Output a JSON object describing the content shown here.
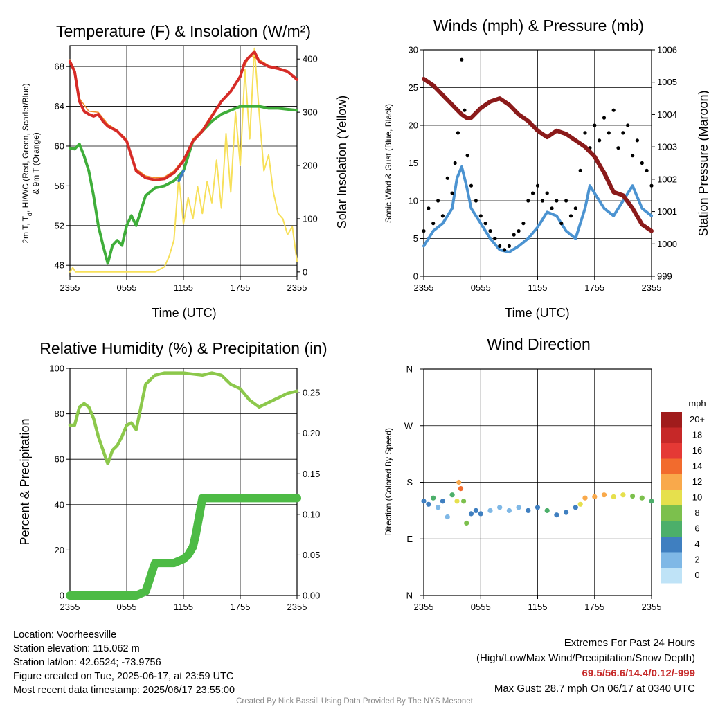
{
  "panels": {
    "temp": {
      "title": "Temperature (F) & Insolation (W/m²)",
      "xlabel": "Time (UTC)",
      "ylabel_left_lines": [
        "2m T, T",
        "d",
        ", HI/WC (Red, Green, Scarlet/Blue)",
        "& 9m T (Orange)"
      ],
      "ylabel_right": "Solar Insolation (Yellow)"
    },
    "wind": {
      "title": "Winds (mph) & Pressure (mb)",
      "xlabel": "Time (UTC)",
      "ylabel_left": "Sonic Wind & Gust (Blue, Black)",
      "ylabel_right": "Station Pressure (Maroon)"
    },
    "rh": {
      "title": "Relative Humidity (%) & Precipitation (in)",
      "ylabel_left": "Percent & Precipitation"
    },
    "dir": {
      "title": "Wind Direction",
      "ylabel_left": "Direction (Colored By Speed)",
      "colorbar_title": "mph",
      "colorbar_labels": [
        "20+",
        "18",
        "16",
        "14",
        "12",
        "10",
        "8",
        "6",
        "4",
        "2",
        "0"
      ],
      "colorbar_colors": [
        "#a01c1c",
        "#c62828",
        "#e53935",
        "#f26b2d",
        "#f9a94b",
        "#e6e04d",
        "#7cc04d",
        "#4caf6a",
        "#3f7fc0",
        "#7fb8e6",
        "#bfe3f7"
      ]
    }
  },
  "info": {
    "location": "Location: Voorheesville",
    "elevation": "Station elevation: 115.062 m",
    "latlon": "Station lat/lon: 42.6524; -73.9756",
    "created": "Figure created on Tue, 2025-06-17, at 23:59 UTC",
    "recent": "Most recent data timestamp: 2025/06/17 23:55:00",
    "extremes_title": "Extremes For Past 24 Hours",
    "extremes_sub": "(High/Low/Max Wind/Precipitation/Snow Depth)",
    "extremes_values": "69.5/56.6/14.4/0.12/-999",
    "max_gust": "Max Gust: 28.7 mph On 06/17 at 0340 UTC"
  },
  "credit": "Created By Nick Bassill Using Data Provided By The NYS Mesonet",
  "colors": {
    "temp": "#d62b27",
    "temp9m": "#f28c28",
    "dewpoint": "#3fae3a",
    "hiwc": "#3a7fc0",
    "solar": "#f7e05a",
    "wind": "#4b93d1",
    "gust": "#000000",
    "pressure": "#8b1a1a",
    "rh": "#8cc84b",
    "precip": "#4dbb45"
  },
  "chart_data": [
    {
      "type": "line",
      "title": "Temperature (F) & Insolation (W/m²)",
      "xlabel": "Time (UTC)",
      "x_ticks": [
        "2355",
        "0555",
        "1155",
        "1755",
        "2355"
      ],
      "x_hours": [
        0,
        6,
        12,
        18,
        24
      ],
      "xlim": [
        0,
        24
      ],
      "y_left_ticks": [
        48,
        52,
        56,
        60,
        64,
        68
      ],
      "ylim_left": [
        46.9,
        70.1
      ],
      "y_right_ticks": [
        0,
        100,
        200,
        300,
        400
      ],
      "ylim_right": [
        -8,
        425
      ],
      "series": [
        {
          "name": "2m T (Red)",
          "axis": "left",
          "x": [
            0,
            0.5,
            1,
            1.5,
            2,
            2.5,
            3,
            3.5,
            4,
            5,
            6,
            7,
            8,
            9,
            10,
            11,
            12,
            13,
            14,
            15,
            16,
            17,
            18,
            18.5,
            19,
            19.5,
            20,
            21,
            22,
            23,
            24
          ],
          "y": [
            68.5,
            67.5,
            64.5,
            63.5,
            63.2,
            63,
            63.2,
            62.5,
            62,
            61.5,
            60.5,
            57.5,
            56.8,
            56.6,
            56.7,
            57.3,
            58.5,
            60.5,
            61.5,
            63,
            64.5,
            65.5,
            67,
            68.5,
            69,
            69.5,
            68.5,
            68,
            67.8,
            67.5,
            66.7
          ]
        },
        {
          "name": "9m T (Orange)",
          "axis": "left",
          "x": [
            0,
            0.5,
            1,
            2,
            3,
            4,
            5,
            6,
            7,
            8,
            9,
            10,
            11,
            12,
            13,
            14,
            15,
            16,
            17,
            18,
            19,
            20,
            21,
            22,
            23,
            24
          ],
          "y": [
            68.7,
            67.7,
            64.8,
            63.5,
            63.4,
            62.2,
            61.6,
            60.7,
            57.7,
            57,
            56.8,
            56.9,
            57.5,
            58.7,
            60.7,
            61.7,
            63.2,
            64.6,
            65.6,
            67.1,
            69.1,
            68.7,
            68.1,
            67.9,
            67.6,
            66.8
          ]
        },
        {
          "name": "Td (Green)",
          "axis": "left",
          "x": [
            0,
            0.5,
            1,
            1.5,
            2,
            2.5,
            3,
            3.5,
            4,
            4.5,
            5,
            5.5,
            6,
            6.5,
            7,
            8,
            9,
            10,
            11,
            12,
            13,
            14,
            15,
            16,
            17,
            18,
            19,
            20,
            21,
            22,
            23,
            24
          ],
          "y": [
            59.8,
            59.7,
            60.2,
            59,
            57.5,
            55,
            52,
            50,
            48.2,
            50,
            50.5,
            50,
            52,
            53,
            52,
            55,
            55.8,
            56,
            56.5,
            57.5,
            60.5,
            61.5,
            62.5,
            63.2,
            63.6,
            64,
            64,
            64,
            63.8,
            63.8,
            63.7,
            63.6
          ]
        },
        {
          "name": "HI/WC (Blue)",
          "axis": "left",
          "x": [
            11.5,
            12
          ],
          "y": [
            56.5,
            57.5
          ]
        },
        {
          "name": "Solar Insolation (Yellow)",
          "axis": "right",
          "x": [
            0,
            0.3,
            0.6,
            1,
            2,
            4,
            6,
            8,
            9,
            10,
            10.5,
            11,
            11.5,
            12,
            12.5,
            13,
            13.5,
            14,
            14.5,
            15,
            15.5,
            16,
            16.5,
            17,
            17.5,
            18,
            18.5,
            19,
            19.5,
            20,
            20.5,
            21,
            21.5,
            22,
            22.5,
            23,
            23.5,
            24
          ],
          "y": [
            0,
            8,
            0,
            0,
            0,
            0,
            0,
            0,
            0,
            10,
            30,
            60,
            180,
            90,
            140,
            100,
            160,
            110,
            170,
            130,
            210,
            120,
            260,
            150,
            300,
            200,
            380,
            250,
            420,
            300,
            190,
            220,
            150,
            110,
            100,
            70,
            85,
            20
          ]
        }
      ]
    },
    {
      "type": "line",
      "title": "Winds (mph) & Pressure (mb)",
      "xlabel": "Time (UTC)",
      "ylabel": "Sonic Wind & Gust (Blue, Black)",
      "x_ticks": [
        "2355",
        "0555",
        "1155",
        "1755",
        "2355"
      ],
      "xlim": [
        0,
        24
      ],
      "y_left_ticks": [
        0,
        5,
        10,
        15,
        20,
        25,
        30
      ],
      "ylim_left": [
        0,
        30
      ],
      "y_right_ticks": [
        999,
        1000,
        1001,
        1002,
        1003,
        1004,
        1005,
        1006
      ],
      "ylim_right": [
        999,
        1006
      ],
      "series": [
        {
          "name": "Sonic Wind (Blue)",
          "axis": "left",
          "x": [
            0,
            1,
            2,
            3,
            3.5,
            4,
            4.5,
            5,
            6,
            7,
            8,
            9,
            10,
            11,
            12,
            13,
            14,
            15,
            16,
            17,
            17.5,
            18,
            19,
            20,
            21,
            22,
            23,
            24
          ],
          "y": [
            4,
            6,
            7,
            9,
            13,
            14.5,
            12,
            9,
            7,
            5,
            3.5,
            3.2,
            4,
            5,
            6.5,
            8.5,
            8,
            6,
            5,
            9,
            12,
            11,
            9,
            8,
            10,
            12,
            9,
            8
          ]
        },
        {
          "name": "Gust (Black)",
          "axis": "left",
          "style": "points",
          "x": [
            0,
            0.5,
            1,
            1.5,
            2,
            2.5,
            3,
            3.3,
            3.6,
            4,
            4.3,
            4.6,
            5,
            5.5,
            6,
            6.5,
            7,
            7.5,
            8,
            8.5,
            9,
            9.5,
            10,
            10.5,
            11,
            11.5,
            12,
            12.5,
            13,
            13.5,
            14,
            14.5,
            15,
            15.5,
            16,
            16.5,
            17,
            17.5,
            18,
            18.5,
            19,
            19.5,
            20,
            20.5,
            21,
            21.5,
            22,
            22.5,
            23,
            23.5,
            24
          ],
          "y": [
            6,
            9,
            7,
            10,
            8,
            13,
            11,
            15,
            19,
            28.7,
            22,
            16,
            12,
            10,
            8,
            7,
            6,
            5,
            4,
            3.5,
            4,
            5.5,
            6,
            7,
            10,
            11,
            12,
            10,
            11,
            9,
            10,
            7,
            10,
            8,
            9,
            14,
            19,
            17,
            20,
            18,
            21,
            19,
            22,
            17,
            19,
            20,
            16,
            18,
            15,
            14,
            12
          ]
        },
        {
          "name": "Station Pressure (Maroon)",
          "axis": "right",
          "x": [
            0,
            1,
            2,
            3,
            4,
            4.5,
            5,
            6,
            7,
            8,
            9,
            10,
            11,
            12,
            13,
            14,
            15,
            16,
            17,
            18,
            19,
            20,
            21,
            22,
            23,
            24
          ],
          "y": [
            1005.1,
            1004.9,
            1004.6,
            1004.3,
            1004.0,
            1003.9,
            1003.9,
            1004.2,
            1004.4,
            1004.5,
            1004.3,
            1004.0,
            1003.8,
            1003.5,
            1003.3,
            1003.5,
            1003.4,
            1003.2,
            1003.0,
            1002.7,
            1002.2,
            1001.6,
            1001.5,
            1001.1,
            1000.6,
            1000.4
          ]
        }
      ]
    },
    {
      "type": "line",
      "title": "Relative Humidity (%) & Precipitation (in)",
      "ylabel": "Percent & Precipitation",
      "x_ticks": [
        "2355",
        "0555",
        "1155",
        "1755",
        "2355"
      ],
      "xlim": [
        0,
        24
      ],
      "y_left_ticks": [
        0,
        20,
        40,
        60,
        80,
        100
      ],
      "ylim_left": [
        0,
        100
      ],
      "y_right_ticks": [
        "0.00",
        "0.05",
        "0.10",
        "0.15",
        "0.20",
        "0.25"
      ],
      "ylim_right": [
        0,
        0.28
      ],
      "series": [
        {
          "name": "Relative Humidity",
          "axis": "left",
          "x": [
            0,
            0.5,
            1,
            1.5,
            2,
            2.5,
            3,
            3.5,
            4,
            4.5,
            5,
            5.5,
            6,
            6.5,
            7,
            7.5,
            8,
            9,
            10,
            11,
            12,
            13,
            14,
            15,
            16,
            17,
            18,
            19,
            20,
            21,
            22,
            23,
            24
          ],
          "y": [
            75,
            75,
            83,
            84.5,
            83,
            78,
            70,
            64,
            58,
            64,
            66,
            70,
            75,
            76,
            73,
            83,
            93,
            97,
            98,
            98,
            98,
            97.5,
            97,
            98,
            97,
            93,
            91,
            86,
            83,
            85,
            87,
            89,
            90
          ]
        },
        {
          "name": "Precipitation",
          "axis": "right",
          "x": [
            0,
            1,
            2,
            3,
            4,
            5,
            6,
            7,
            8,
            8.3,
            8.7,
            9,
            10,
            11,
            12,
            12.5,
            13,
            13.3,
            13.7,
            14,
            15,
            16,
            17,
            18,
            19,
            20,
            21,
            22,
            23,
            24
          ],
          "y": [
            0,
            0,
            0,
            0,
            0,
            0,
            0,
            0,
            0.005,
            0.015,
            0.03,
            0.04,
            0.04,
            0.04,
            0.045,
            0.05,
            0.06,
            0.075,
            0.1,
            0.12,
            0.12,
            0.12,
            0.12,
            0.12,
            0.12,
            0.12,
            0.12,
            0.12,
            0.12,
            0.12
          ]
        }
      ]
    },
    {
      "type": "scatter",
      "title": "Wind Direction",
      "ylabel": "Direction (Colored By Speed)",
      "x_ticks": [
        "2355",
        "0555",
        "1155",
        "1755",
        "2355"
      ],
      "xlim": [
        0,
        24
      ],
      "y_ticks": [
        "N",
        "E",
        "S",
        "W",
        "N"
      ],
      "ylim_degrees": [
        0,
        360
      ],
      "points": [
        {
          "x": 0,
          "deg": 150,
          "mph": 4
        },
        {
          "x": 0.5,
          "deg": 145,
          "mph": 5
        },
        {
          "x": 1,
          "deg": 155,
          "mph": 6
        },
        {
          "x": 1.5,
          "deg": 140,
          "mph": 3
        },
        {
          "x": 2,
          "deg": 150,
          "mph": 5
        },
        {
          "x": 2.5,
          "deg": 125,
          "mph": 3
        },
        {
          "x": 3,
          "deg": 160,
          "mph": 7
        },
        {
          "x": 3.5,
          "deg": 150,
          "mph": 10
        },
        {
          "x": 3.7,
          "deg": 180,
          "mph": 13
        },
        {
          "x": 3.9,
          "deg": 170,
          "mph": 14
        },
        {
          "x": 4.2,
          "deg": 150,
          "mph": 9
        },
        {
          "x": 4.5,
          "deg": 115,
          "mph": 8
        },
        {
          "x": 5,
          "deg": 130,
          "mph": 5
        },
        {
          "x": 5.5,
          "deg": 135,
          "mph": 4
        },
        {
          "x": 6,
          "deg": 130,
          "mph": 4
        },
        {
          "x": 7,
          "deg": 135,
          "mph": 3
        },
        {
          "x": 8,
          "deg": 140,
          "mph": 2
        },
        {
          "x": 9,
          "deg": 135,
          "mph": 2
        },
        {
          "x": 10,
          "deg": 140,
          "mph": 3
        },
        {
          "x": 11,
          "deg": 135,
          "mph": 4
        },
        {
          "x": 12,
          "deg": 140,
          "mph": 4
        },
        {
          "x": 13,
          "deg": 135,
          "mph": 6
        },
        {
          "x": 14,
          "deg": 128,
          "mph": 5
        },
        {
          "x": 15,
          "deg": 132,
          "mph": 4
        },
        {
          "x": 16,
          "deg": 140,
          "mph": 5
        },
        {
          "x": 16.5,
          "deg": 145,
          "mph": 10
        },
        {
          "x": 17,
          "deg": 155,
          "mph": 12
        },
        {
          "x": 18,
          "deg": 157,
          "mph": 13
        },
        {
          "x": 19,
          "deg": 160,
          "mph": 12
        },
        {
          "x": 20,
          "deg": 157,
          "mph": 10
        },
        {
          "x": 21,
          "deg": 160,
          "mph": 11
        },
        {
          "x": 22,
          "deg": 158,
          "mph": 8
        },
        {
          "x": 23,
          "deg": 155,
          "mph": 9
        },
        {
          "x": 24,
          "deg": 150,
          "mph": 7
        }
      ]
    }
  ]
}
